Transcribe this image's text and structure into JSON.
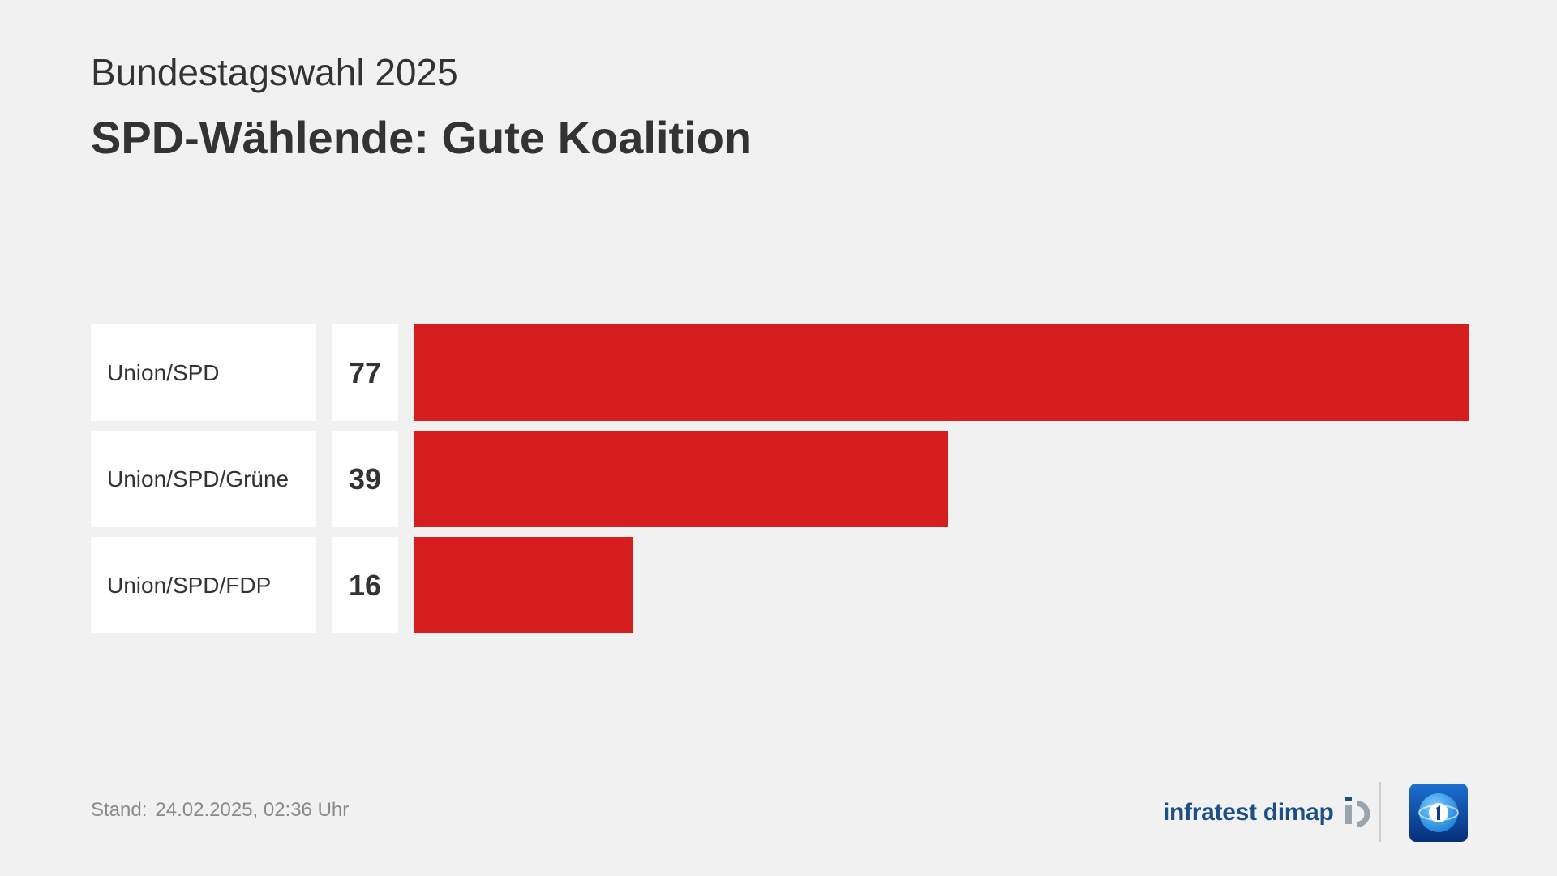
{
  "header": {
    "supertitle": "Bundestagswahl 2025",
    "title": "SPD-Wählende: Gute Koalition"
  },
  "chart_data": {
    "type": "bar",
    "orientation": "horizontal",
    "categories": [
      "Union/SPD",
      "Union/SPD/Grüne",
      "Union/SPD/FDP"
    ],
    "values": [
      77,
      39,
      16
    ],
    "value_labels": [
      "77",
      "39",
      "16"
    ],
    "bar_color": "#d61e1e",
    "xlim": [
      0,
      77
    ],
    "grid": false
  },
  "footer": {
    "stand_label": "Stand:",
    "stand_value": "24.02.2025, 02:36 Uhr",
    "source_logo_text": "infratest dimap",
    "source_logo_icon": "infratest-dimap-logo-icon",
    "broadcaster_logo_icon": "tagesschau-logo-icon"
  },
  "colors": {
    "background": "#f1f1f1",
    "bar": "#d61e1e",
    "text": "#333333",
    "footer_text": "#8a8a8a",
    "infratest_blue": "#1c4f86",
    "infratest_gray": "#9aa4ae",
    "tagesschau_blue": "#0a3d8f"
  }
}
